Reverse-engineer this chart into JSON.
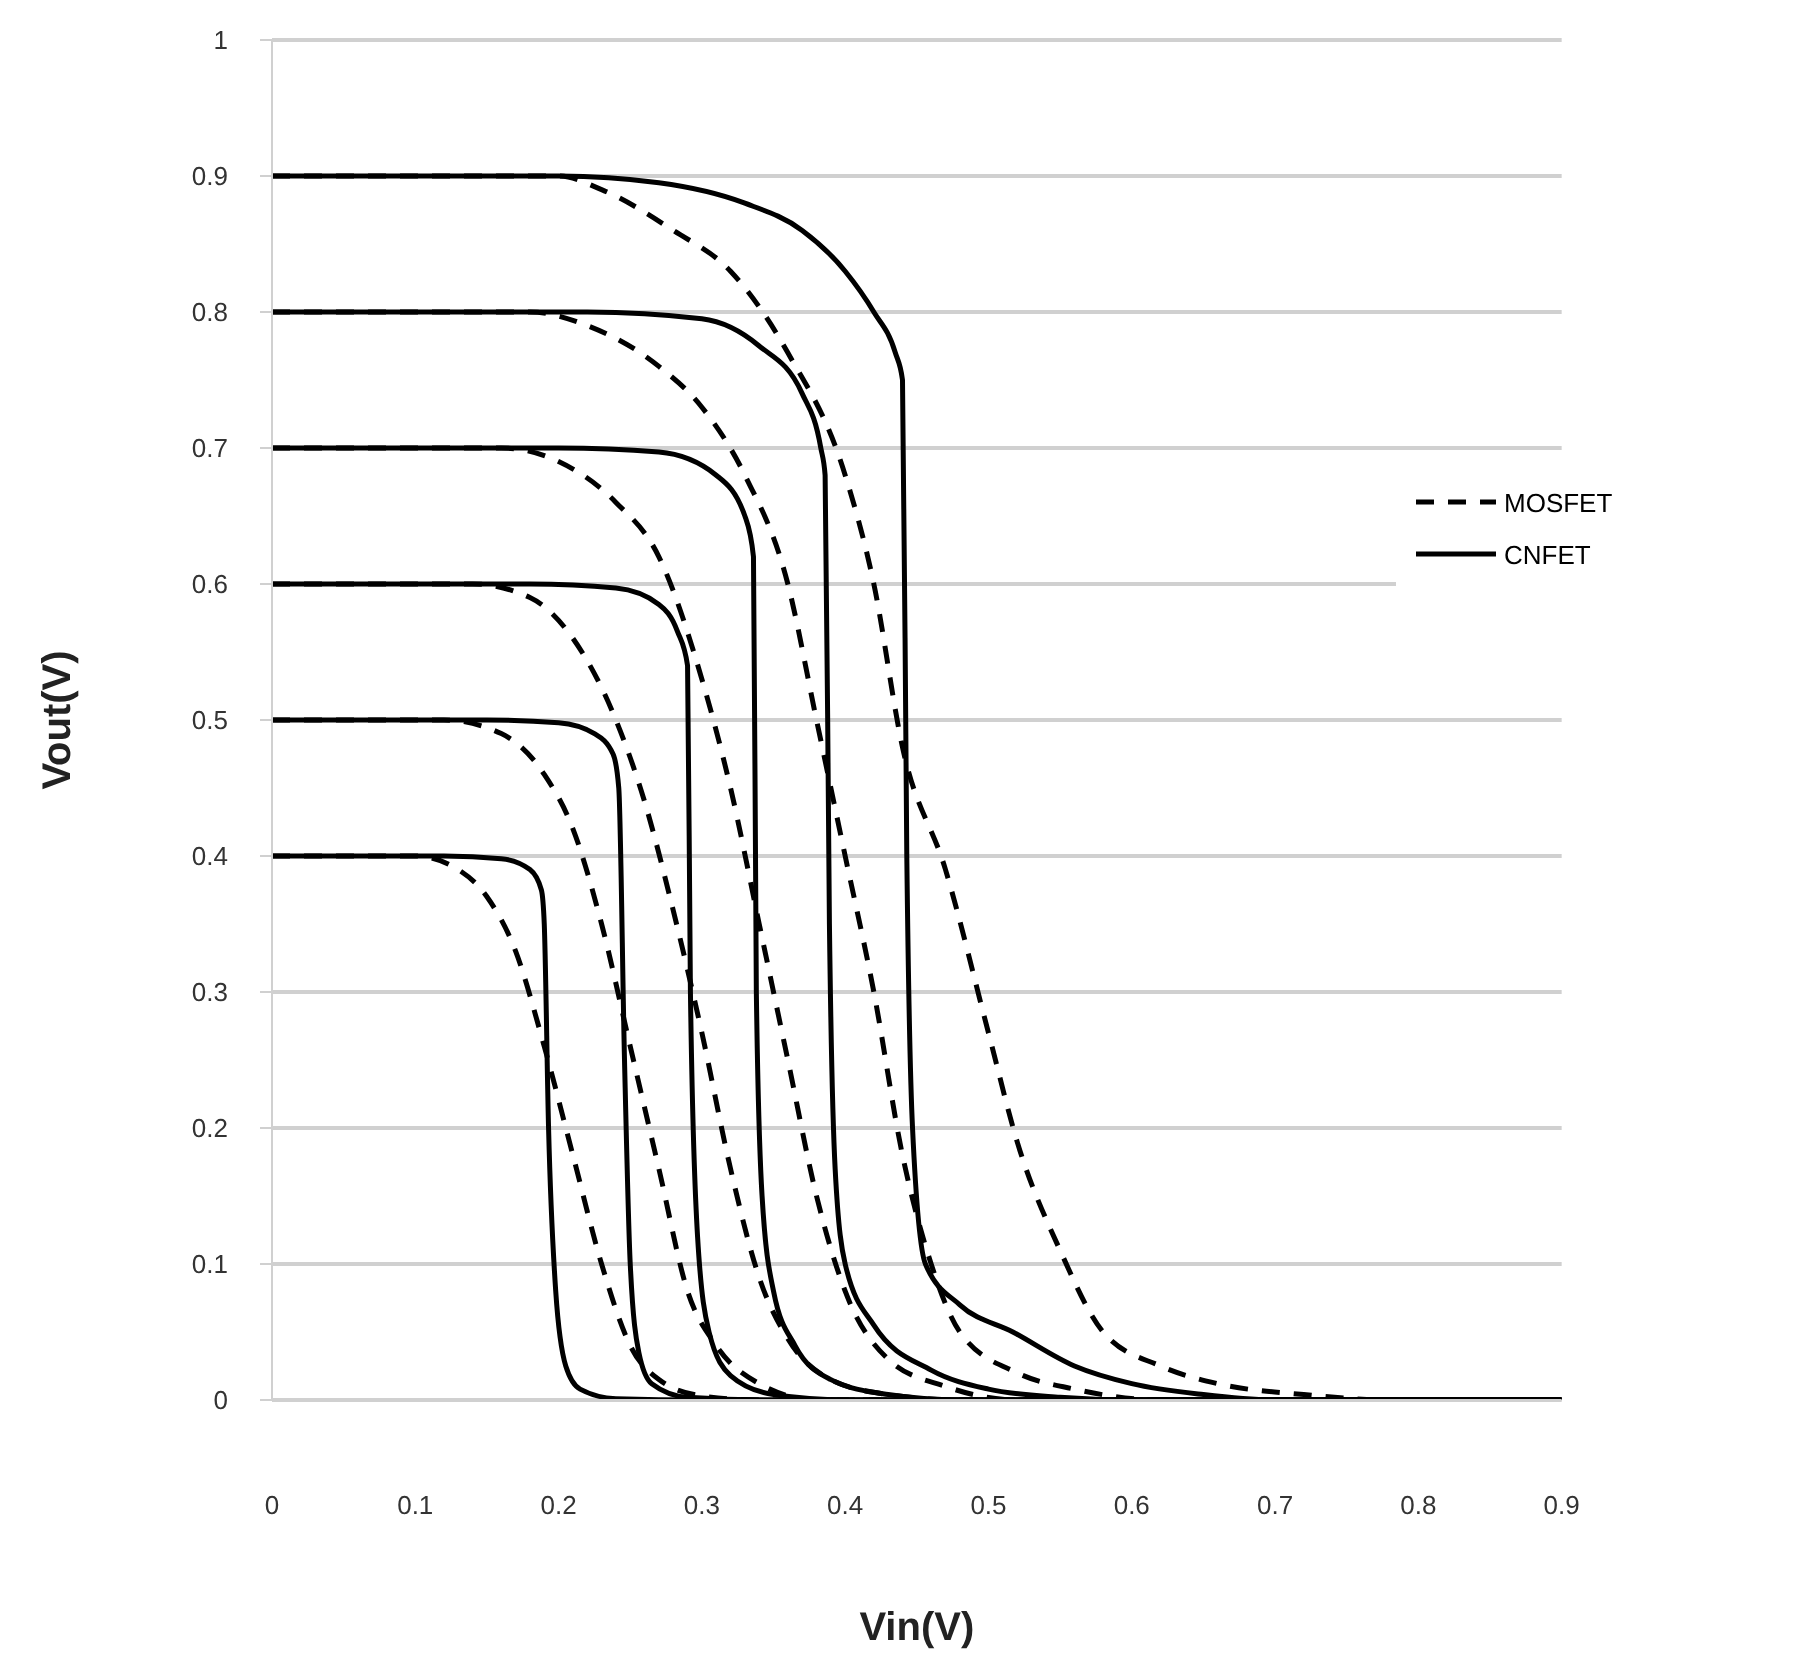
{
  "chart_data": {
    "type": "line",
    "xlabel": "Vin(V)",
    "ylabel": "Vout(V)",
    "xlim": [
      0,
      0.9
    ],
    "xticks": [
      0,
      0.1,
      0.2,
      0.3,
      0.4,
      0.5,
      0.6,
      0.7,
      0.8,
      0.9
    ],
    "ylim": [
      0,
      1
    ],
    "yticks": [
      0,
      0.1,
      0.2,
      0.3,
      0.4,
      0.5,
      0.6,
      0.7,
      0.8,
      0.9,
      1
    ],
    "grid": "y",
    "legend": "right",
    "series": [
      {
        "name": "MOSFET",
        "color": "#000000",
        "line_style": "dashed",
        "x": [
          0,
          0.2,
          0.23,
          0.28,
          0.32,
          0.36,
          0.4,
          0.42,
          0.44,
          0.47,
          0.5,
          0.52,
          0.55,
          0.58,
          0.62,
          0.66,
          0.72,
          0.78,
          0.9
        ],
        "values": [
          0.9,
          0.9,
          0.89,
          0.86,
          0.83,
          0.77,
          0.68,
          0.6,
          0.48,
          0.39,
          0.27,
          0.19,
          0.11,
          0.05,
          0.025,
          0.012,
          0.004,
          0,
          0
        ]
      },
      {
        "color": "#000000",
        "line_style": "dashed",
        "x": [
          0,
          0.18,
          0.22,
          0.27,
          0.3,
          0.33,
          0.36,
          0.38,
          0.4,
          0.42,
          0.44,
          0.46,
          0.48,
          0.52,
          0.56,
          0.62,
          0.9
        ],
        "values": [
          0.8,
          0.8,
          0.79,
          0.76,
          0.73,
          0.68,
          0.6,
          0.5,
          0.4,
          0.3,
          0.18,
          0.1,
          0.05,
          0.02,
          0.008,
          0,
          0
        ]
      },
      {
        "color": "#000000",
        "line_style": "dashed",
        "x": [
          0,
          0.16,
          0.2,
          0.24,
          0.27,
          0.3,
          0.32,
          0.34,
          0.36,
          0.38,
          0.4,
          0.43,
          0.47,
          0.52,
          0.9
        ],
        "values": [
          0.7,
          0.7,
          0.69,
          0.66,
          0.62,
          0.53,
          0.45,
          0.35,
          0.25,
          0.15,
          0.08,
          0.03,
          0.01,
          0,
          0
        ]
      },
      {
        "color": "#000000",
        "line_style": "dashed",
        "x": [
          0,
          0.14,
          0.18,
          0.21,
          0.24,
          0.26,
          0.28,
          0.3,
          0.32,
          0.34,
          0.36,
          0.39,
          0.43,
          0.48,
          0.9
        ],
        "values": [
          0.6,
          0.6,
          0.59,
          0.56,
          0.5,
          0.44,
          0.36,
          0.27,
          0.17,
          0.09,
          0.045,
          0.015,
          0.004,
          0,
          0
        ]
      },
      {
        "color": "#000000",
        "line_style": "dashed",
        "x": [
          0,
          0.12,
          0.16,
          0.19,
          0.21,
          0.23,
          0.25,
          0.27,
          0.29,
          0.31,
          0.34,
          0.38,
          0.9
        ],
        "values": [
          0.5,
          0.5,
          0.49,
          0.46,
          0.42,
          0.35,
          0.26,
          0.17,
          0.08,
          0.04,
          0.012,
          0,
          0
        ]
      },
      {
        "color": "#000000",
        "line_style": "dashed",
        "x": [
          0,
          0.1,
          0.13,
          0.15,
          0.17,
          0.19,
          0.21,
          0.23,
          0.25,
          0.27,
          0.3,
          0.34,
          0.9
        ],
        "values": [
          0.4,
          0.4,
          0.39,
          0.37,
          0.33,
          0.26,
          0.18,
          0.1,
          0.04,
          0.015,
          0.003,
          0,
          0
        ]
      },
      {
        "name": "CNFET",
        "color": "#000000",
        "line_style": "solid",
        "x": [
          0,
          0.2,
          0.27,
          0.33,
          0.37,
          0.4,
          0.42,
          0.435,
          0.44,
          0.443,
          0.447,
          0.456,
          0.48,
          0.517,
          0.56,
          0.6,
          0.65,
          0.7,
          0.9
        ],
        "values": [
          0.9,
          0.9,
          0.895,
          0.88,
          0.86,
          0.83,
          0.8,
          0.77,
          0.75,
          0.4,
          0.2,
          0.1,
          0.07,
          0.05,
          0.025,
          0.012,
          0.004,
          0,
          0
        ]
      },
      {
        "color": "#000000",
        "line_style": "solid",
        "x": [
          0,
          0.22,
          0.3,
          0.34,
          0.37,
          0.383,
          0.386,
          0.389,
          0.393,
          0.4,
          0.42,
          0.46,
          0.5,
          0.55,
          0.6,
          0.9
        ],
        "values": [
          0.8,
          0.8,
          0.795,
          0.775,
          0.74,
          0.7,
          0.68,
          0.35,
          0.17,
          0.1,
          0.055,
          0.022,
          0.008,
          0.002,
          0,
          0
        ]
      },
      {
        "color": "#000000",
        "line_style": "solid",
        "x": [
          0,
          0.2,
          0.27,
          0.31,
          0.33,
          0.336,
          0.338,
          0.342,
          0.35,
          0.365,
          0.39,
          0.43,
          0.48,
          0.9
        ],
        "values": [
          0.7,
          0.7,
          0.697,
          0.68,
          0.65,
          0.62,
          0.3,
          0.15,
          0.08,
          0.04,
          0.015,
          0.004,
          0,
          0
        ]
      },
      {
        "color": "#000000",
        "line_style": "solid",
        "x": [
          0,
          0.18,
          0.24,
          0.27,
          0.283,
          0.29,
          0.292,
          0.297,
          0.305,
          0.32,
          0.35,
          0.4,
          0.9
        ],
        "values": [
          0.6,
          0.6,
          0.597,
          0.585,
          0.565,
          0.54,
          0.3,
          0.12,
          0.05,
          0.018,
          0.004,
          0,
          0
        ]
      },
      {
        "color": "#000000",
        "line_style": "solid",
        "x": [
          0,
          0.15,
          0.2,
          0.225,
          0.238,
          0.242,
          0.246,
          0.25,
          0.256,
          0.265,
          0.29,
          0.35,
          0.9
        ],
        "values": [
          0.5,
          0.5,
          0.498,
          0.49,
          0.475,
          0.45,
          0.25,
          0.1,
          0.035,
          0.012,
          0.002,
          0,
          0
        ]
      },
      {
        "color": "#000000",
        "line_style": "solid",
        "x": [
          0,
          0.12,
          0.16,
          0.18,
          0.188,
          0.19,
          0.193,
          0.198,
          0.205,
          0.215,
          0.24,
          0.3,
          0.9
        ],
        "values": [
          0.4,
          0.4,
          0.398,
          0.39,
          0.375,
          0.35,
          0.2,
          0.08,
          0.025,
          0.008,
          0.001,
          0,
          0
        ]
      }
    ]
  }
}
